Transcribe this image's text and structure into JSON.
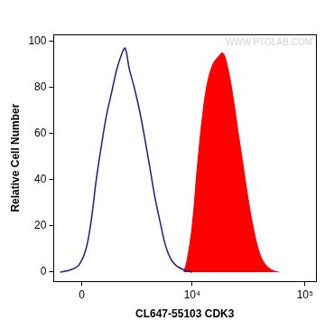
{
  "chart_data": {
    "type": "line",
    "x_label": "CL647-55103 CDK3",
    "y_label": "Relative Cell Number",
    "annotations": [
      "WWW.PTGLAB.COM"
    ],
    "log": "x",
    "grid": false,
    "xlim": [
      -1300,
      125000
    ],
    "xticks": [
      0,
      {
        "value": 10000,
        "label": "10⁴"
      },
      {
        "value": 100000,
        "label": "10⁵"
      }
    ],
    "ylim": [
      -4,
      103
    ],
    "yticks": [
      0,
      20,
      40,
      60,
      80,
      100
    ],
    "series": [
      {
        "type": "line",
        "color": "#1c1c8a",
        "x": [
          -976,
          -499,
          -135,
          181,
          407,
          639,
          880,
          1125,
          1386,
          1664,
          1960,
          2150,
          2410,
          2750,
          3140,
          3560,
          4020,
          4520,
          5040,
          5650,
          6320,
          7070,
          8400,
          10000
        ],
        "values": [
          0,
          1,
          3,
          10,
          22,
          40,
          55,
          68,
          78,
          88,
          95,
          97,
          88,
          80,
          70,
          58,
          45,
          32,
          22,
          12,
          6,
          3,
          1,
          0
        ]
      },
      {
        "type": "area",
        "color": "#ff0000",
        "x": [
          8400,
          8980,
          10000,
          11100,
          12400,
          13700,
          15300,
          16900,
          18800,
          20900,
          23300,
          25800,
          28700,
          31900,
          35400,
          39300,
          43700,
          50700,
          58700
        ],
        "values": [
          0,
          5,
          20,
          45,
          68,
          82,
          90,
          93,
          95,
          88,
          75,
          60,
          45,
          30,
          18,
          9,
          4,
          1,
          0
        ]
      }
    ]
  }
}
